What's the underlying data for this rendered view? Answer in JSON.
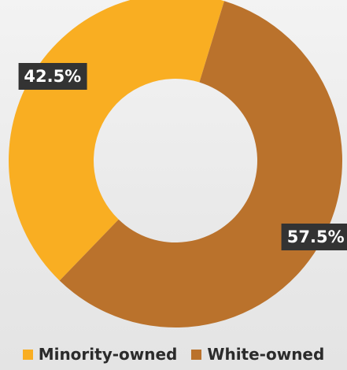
{
  "chart_data": {
    "type": "pie",
    "categories": [
      "Minority-owned",
      "White-owned"
    ],
    "values": [
      42.5,
      57.5
    ],
    "labels": [
      "42.5%",
      "57.5%"
    ],
    "colors": [
      "#F9AE22",
      "#BA722C"
    ],
    "donut": true,
    "legend": "bottom"
  }
}
